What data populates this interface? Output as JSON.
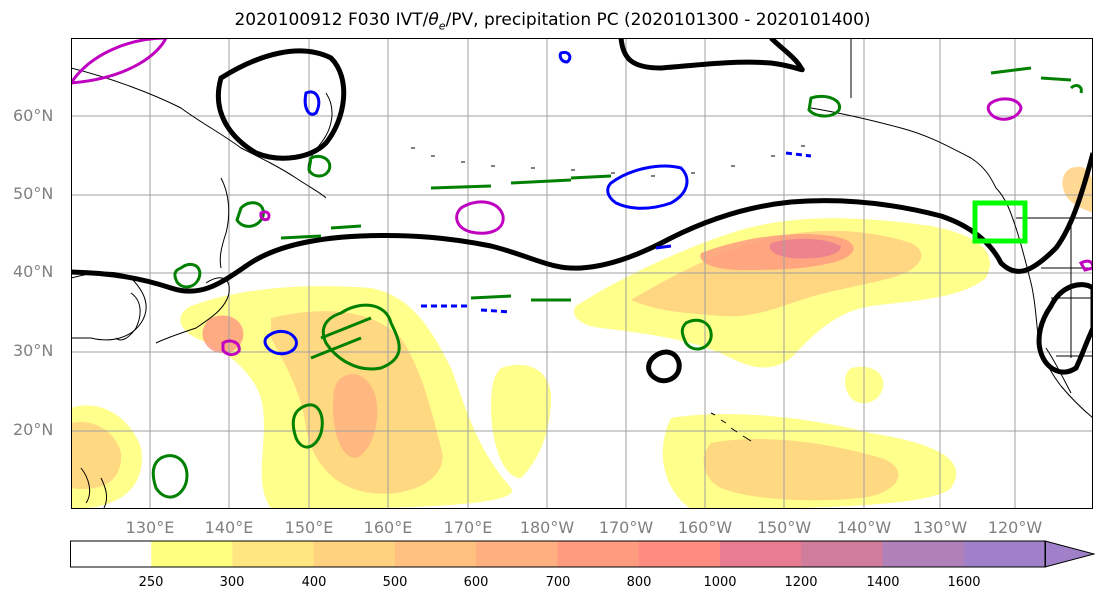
{
  "title": "2020100912 F030 IVT/θe/PV, precipitation PC (2020101300 - 2020101400)",
  "title_parts": {
    "prefix": "2020100912 F030 IVT/",
    "theta": "θ",
    "theta_sub": "e",
    "suffix": "/PV, precipitation PC (2020101300 - 2020101400)"
  },
  "map": {
    "lat_labels": [
      "60°N",
      "50°N",
      "40°N",
      "30°N",
      "20°N"
    ],
    "lon_labels": [
      "130°E",
      "140°E",
      "150°E",
      "160°E",
      "170°E",
      "180°W",
      "170°W",
      "160°W",
      "150°W",
      "140°W",
      "130°W",
      "120°W"
    ],
    "highlight_box_color": "#00ff00",
    "contour_colors": {
      "ivt_line": "#000000",
      "theta_e_green": "#008000",
      "pv_blue": "#0000ff",
      "pv_magenta": "#c000c0"
    }
  },
  "colorbar": {
    "tick_labels": [
      "250",
      "300",
      "400",
      "500",
      "600",
      "700",
      "800",
      "1000",
      "1200",
      "1400",
      "1600"
    ],
    "colors": [
      "#ffffff",
      "#ffff80",
      "#ffe680",
      "#ffd280",
      "#ffc080",
      "#ffb080",
      "#ff9c80",
      "#ff8c80",
      "#e87c90",
      "#d07c9c",
      "#b080b8",
      "#a080c8"
    ]
  }
}
